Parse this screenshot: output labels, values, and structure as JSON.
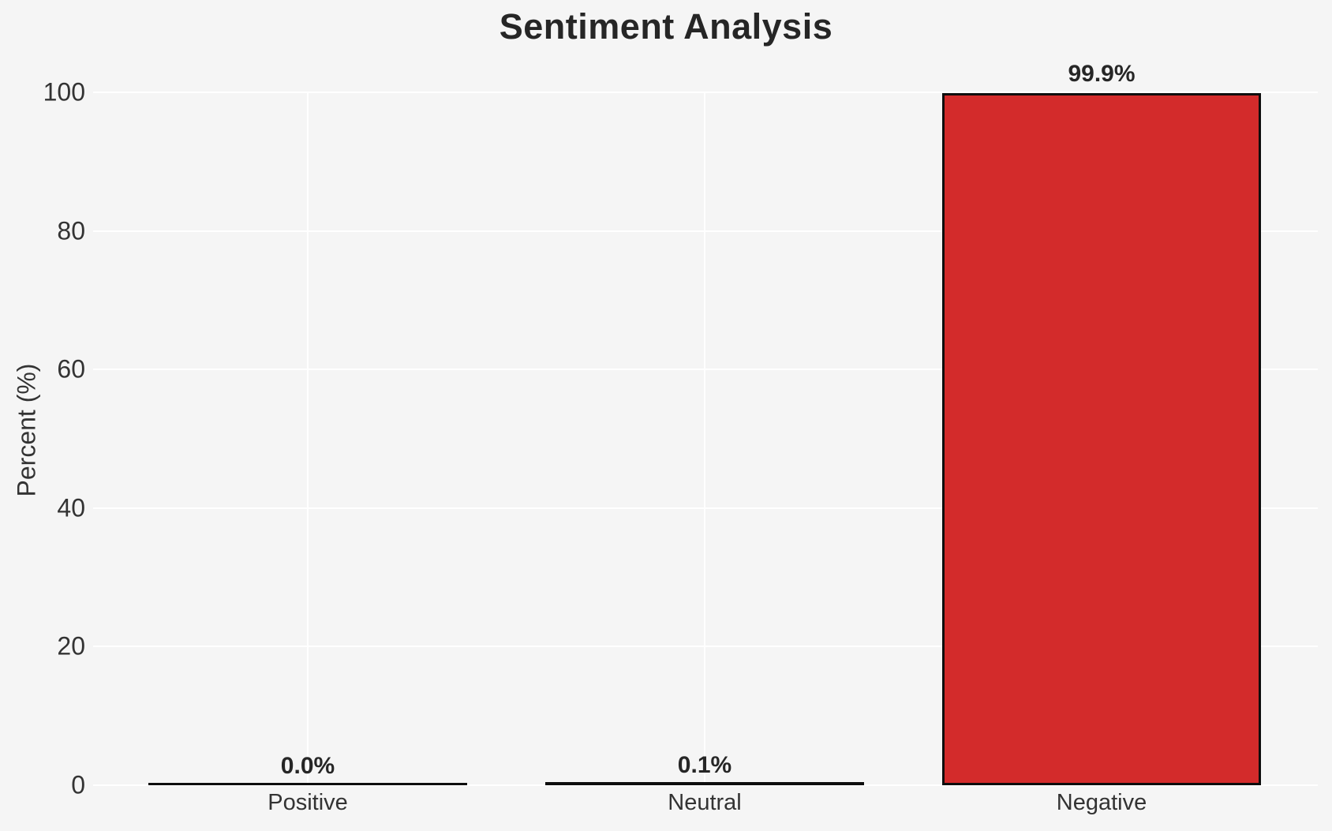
{
  "chart_data": {
    "type": "bar",
    "title": "Sentiment Analysis",
    "xlabel": "",
    "ylabel": "Percent (%)",
    "categories": [
      "Positive",
      "Neutral",
      "Negative"
    ],
    "values": [
      0.0,
      0.1,
      99.9
    ],
    "value_labels": [
      "0.0%",
      "0.1%",
      "99.9%"
    ],
    "yticks": [
      "0",
      "20",
      "40",
      "60",
      "80",
      "100"
    ],
    "ytick_values": [
      0,
      20,
      40,
      60,
      80,
      100
    ],
    "ylim": [
      0,
      100
    ],
    "grid": true,
    "legend": false,
    "colors": {
      "negative_bar_fill": "#d32b2b",
      "bar_edge": "#0d0d0d",
      "background": "#f5f5f5",
      "gridline": "#ffffff",
      "title_text": "#262626",
      "tick_text": "#333333"
    }
  }
}
